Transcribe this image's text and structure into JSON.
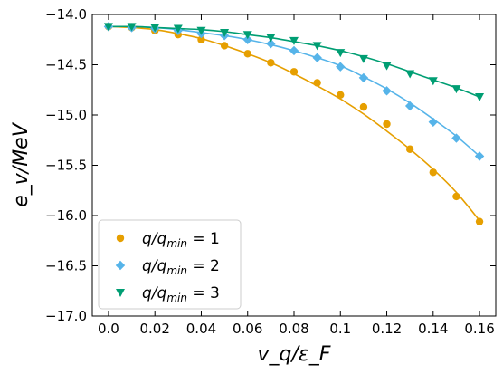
{
  "chart_data": {
    "type": "scatter",
    "xlabel": "v_q/ε_F",
    "ylabel": "e_v/MeV",
    "xlim": [
      -0.007,
      0.167
    ],
    "ylim": [
      -17.0,
      -14.0
    ],
    "xticks": [
      0.0,
      0.02,
      0.04,
      0.06,
      0.08,
      0.1,
      0.12,
      0.14,
      0.16
    ],
    "xtick_labels": [
      "0.0",
      "0.02",
      "0.04",
      "0.06",
      "0.08",
      "0.1",
      "0.12",
      "0.14",
      "0.16"
    ],
    "yticks": [
      -17.0,
      -16.5,
      -16.0,
      -15.5,
      -15.0,
      -14.5,
      -14.0
    ],
    "ytick_labels": [
      "−17.0",
      "−16.5",
      "−16.0",
      "−15.5",
      "−15.0",
      "−14.5",
      "−14.0"
    ],
    "grid": false,
    "legend_position": "lower-left",
    "x": [
      0.0,
      0.01,
      0.02,
      0.03,
      0.04,
      0.05,
      0.06,
      0.07,
      0.08,
      0.09,
      0.1,
      0.11,
      0.12,
      0.13,
      0.14,
      0.15,
      0.16
    ],
    "series": [
      {
        "name": "q/q_min = 1",
        "label_main": "q/q",
        "label_sub": "min",
        "label_rhs": " = 1",
        "marker": "circle",
        "color": "#E69F00",
        "values": [
          -14.12,
          -14.13,
          -14.16,
          -14.2,
          -14.25,
          -14.31,
          -14.39,
          -14.48,
          -14.57,
          -14.68,
          -14.8,
          -14.92,
          -15.09,
          -15.34,
          -15.57,
          -15.81,
          -16.06
        ],
        "curve": [
          -14.12,
          -14.13,
          -14.15,
          -14.19,
          -14.24,
          -14.31,
          -14.39,
          -14.48,
          -14.59,
          -14.71,
          -14.84,
          -14.99,
          -15.16,
          -15.34,
          -15.54,
          -15.77,
          -16.05
        ]
      },
      {
        "name": "q/q_min = 2",
        "label_main": "q/q",
        "label_sub": "min",
        "label_rhs": " = 2",
        "marker": "diamond",
        "color": "#56B4E9",
        "values": [
          -14.12,
          -14.13,
          -14.14,
          -14.16,
          -14.19,
          -14.21,
          -14.25,
          -14.29,
          -14.36,
          -14.43,
          -14.52,
          -14.63,
          -14.76,
          -14.91,
          -15.07,
          -15.23,
          -15.41
        ],
        "curve": [
          -14.12,
          -14.12,
          -14.13,
          -14.15,
          -14.18,
          -14.21,
          -14.25,
          -14.3,
          -14.36,
          -14.43,
          -14.51,
          -14.62,
          -14.74,
          -14.88,
          -15.04,
          -15.21,
          -15.41
        ]
      },
      {
        "name": "q/q_min = 3",
        "label_main": "q/q",
        "label_sub": "min",
        "label_rhs": " = 3",
        "marker": "triangle-down",
        "color": "#009E73",
        "values": [
          -14.12,
          -14.12,
          -14.13,
          -14.14,
          -14.16,
          -14.18,
          -14.2,
          -14.23,
          -14.26,
          -14.31,
          -14.38,
          -14.44,
          -14.51,
          -14.59,
          -14.66,
          -14.74,
          -14.82
        ],
        "curve": [
          -14.12,
          -14.12,
          -14.13,
          -14.14,
          -14.15,
          -14.17,
          -14.2,
          -14.23,
          -14.27,
          -14.31,
          -14.36,
          -14.42,
          -14.49,
          -14.57,
          -14.65,
          -14.73,
          -14.82
        ]
      }
    ]
  }
}
